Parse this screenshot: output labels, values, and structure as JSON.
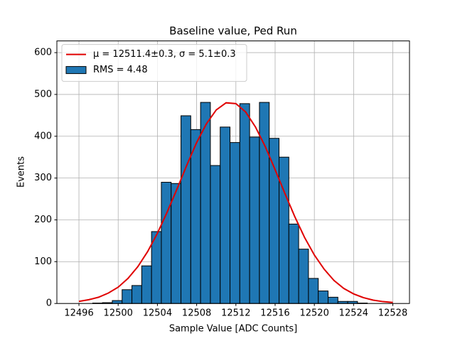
{
  "chart_data": {
    "type": "histogram",
    "title": "Baseline value, Ped Run",
    "xlabel": "Sample Value [ADC Counts]",
    "ylabel": "Events",
    "bins": [
      12497.4,
      12498.4,
      12499.4,
      12500.4,
      12501.4,
      12502.4,
      12503.4,
      12504.4,
      12505.4,
      12506.4,
      12507.4,
      12508.4,
      12509.4,
      12510.4,
      12511.4,
      12512.4,
      12513.4,
      12514.4,
      12515.4,
      12516.4,
      12517.4,
      12518.4,
      12519.4,
      12520.4,
      12521.4,
      12522.4,
      12523.4,
      12524.4,
      12525.4
    ],
    "series": [
      {
        "name": "RMS = 4.48",
        "color": "#1f77b4",
        "values": [
          1,
          2,
          7,
          33,
          43,
          90,
          172,
          290,
          287,
          449,
          416,
          481,
          330,
          422,
          385,
          478,
          398,
          481,
          395,
          350,
          190,
          130,
          60,
          30,
          15,
          5,
          5,
          1
        ]
      },
      {
        "name": "μ = 12511.4±0.3, σ = 5.1±0.3",
        "color": "#e00000",
        "type": "line",
        "x": [
          12496,
          12497,
          12498,
          12499,
          12500,
          12501,
          12502,
          12503,
          12504,
          12505,
          12506,
          12507,
          12508,
          12509,
          12510,
          12511,
          12512,
          12513,
          12514,
          12515,
          12516,
          12517,
          12518,
          12519,
          12520,
          12521,
          12522,
          12523,
          12524,
          12525,
          12526,
          12527,
          12528
        ],
        "values": [
          5,
          9,
          15,
          25,
          39,
          60,
          88,
          124,
          168,
          219,
          274,
          331,
          385,
          430,
          463,
          480,
          478,
          458,
          422,
          375,
          320,
          263,
          208,
          158,
          116,
          82,
          55,
          36,
          23,
          14,
          8,
          4.5,
          2.4
        ]
      }
    ],
    "xlim": [
      12493.75,
      12529.7
    ],
    "xticks": [
      12496,
      12500,
      12504,
      12508,
      12512,
      12516,
      12520,
      12524,
      12528
    ],
    "ylim": [
      0,
      628
    ],
    "yticks": [
      0,
      100,
      200,
      300,
      400,
      500,
      600
    ],
    "grid": true,
    "legend": "upper left"
  }
}
